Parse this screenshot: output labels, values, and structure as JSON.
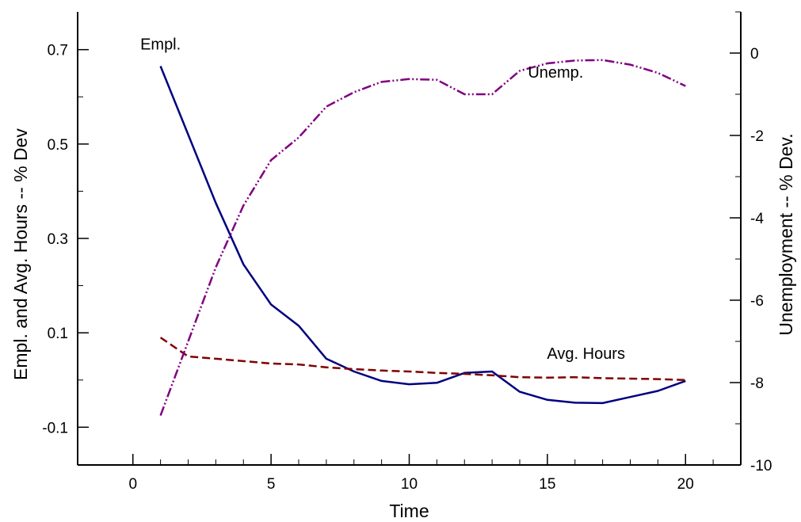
{
  "chart_data": {
    "type": "line",
    "title": "",
    "xlabel": "Time",
    "ylabel_left": "Empl. and Avg. Hours -- % Dev",
    "ylabel_right": "Unemployment -- % Dev.",
    "xlim": [
      -2,
      22
    ],
    "ylim_left": [
      -0.18,
      0.78
    ],
    "ylim_right": [
      -10,
      1
    ],
    "x_ticks": [
      0,
      5,
      10,
      15,
      20
    ],
    "x_tick_labels": [
      "0",
      "5",
      "10",
      "15",
      "20"
    ],
    "y_left_ticks": [
      0.7,
      0.5,
      0.3,
      0.1,
      -0.1
    ],
    "y_left_tick_labels": [
      "0.7",
      "0.5",
      "0.3",
      "0.1",
      "-0.1"
    ],
    "y_right_ticks": [
      0,
      -2,
      -4,
      -6,
      -8,
      -10
    ],
    "y_right_tick_labels": [
      "0",
      "-2",
      "-4",
      "-6",
      "-8",
      "-10"
    ],
    "grid": false,
    "legend": "none",
    "series": [
      {
        "name": "Empl.",
        "axis": "left",
        "color": "#000080",
        "style": "solid",
        "x": [
          1,
          2,
          3,
          4,
          5,
          6,
          7,
          8,
          9,
          10,
          11,
          12,
          13,
          14,
          15,
          16,
          17,
          18,
          19,
          20
        ],
        "values": [
          0.665,
          0.52,
          0.375,
          0.245,
          0.16,
          0.115,
          0.045,
          0.018,
          -0.002,
          -0.009,
          -0.006,
          0.015,
          0.018,
          -0.025,
          -0.042,
          -0.048,
          -0.049,
          -0.036,
          -0.023,
          -0.002
        ]
      },
      {
        "name": "Avg. Hours",
        "axis": "left",
        "color": "#800000",
        "style": "dashed",
        "x": [
          1,
          2,
          3,
          4,
          5,
          6,
          7,
          8,
          9,
          10,
          11,
          12,
          13,
          14,
          15,
          16,
          17,
          18,
          19,
          20
        ],
        "values": [
          0.09,
          0.05,
          0.045,
          0.04,
          0.035,
          0.033,
          0.027,
          0.023,
          0.02,
          0.018,
          0.015,
          0.013,
          0.01,
          0.006,
          0.005,
          0.006,
          0.004,
          0.003,
          0.002,
          0.0
        ]
      },
      {
        "name": "Unemp.",
        "axis": "right",
        "color": "#800080",
        "style": "dash-dot-dot",
        "x": [
          1,
          2,
          3,
          4,
          5,
          6,
          7,
          8,
          9,
          10,
          11,
          12,
          13,
          14,
          15,
          16,
          17,
          18,
          19,
          20
        ],
        "values": [
          -8.8,
          -7.0,
          -5.2,
          -3.7,
          -2.6,
          -2.05,
          -1.3,
          -0.95,
          -0.7,
          -0.63,
          -0.65,
          -1.0,
          -1.0,
          -0.43,
          -0.25,
          -0.18,
          -0.17,
          -0.28,
          -0.48,
          -0.8
        ]
      }
    ],
    "annotations": [
      {
        "text": "Empl.",
        "x": 1.0,
        "y": 0.7,
        "axis": "left"
      },
      {
        "text": "Unemp.",
        "x": 15.3,
        "y": -0.6,
        "axis": "right"
      },
      {
        "text": "Avg. Hours",
        "x": 16.4,
        "y": 0.045,
        "axis": "left"
      }
    ]
  }
}
